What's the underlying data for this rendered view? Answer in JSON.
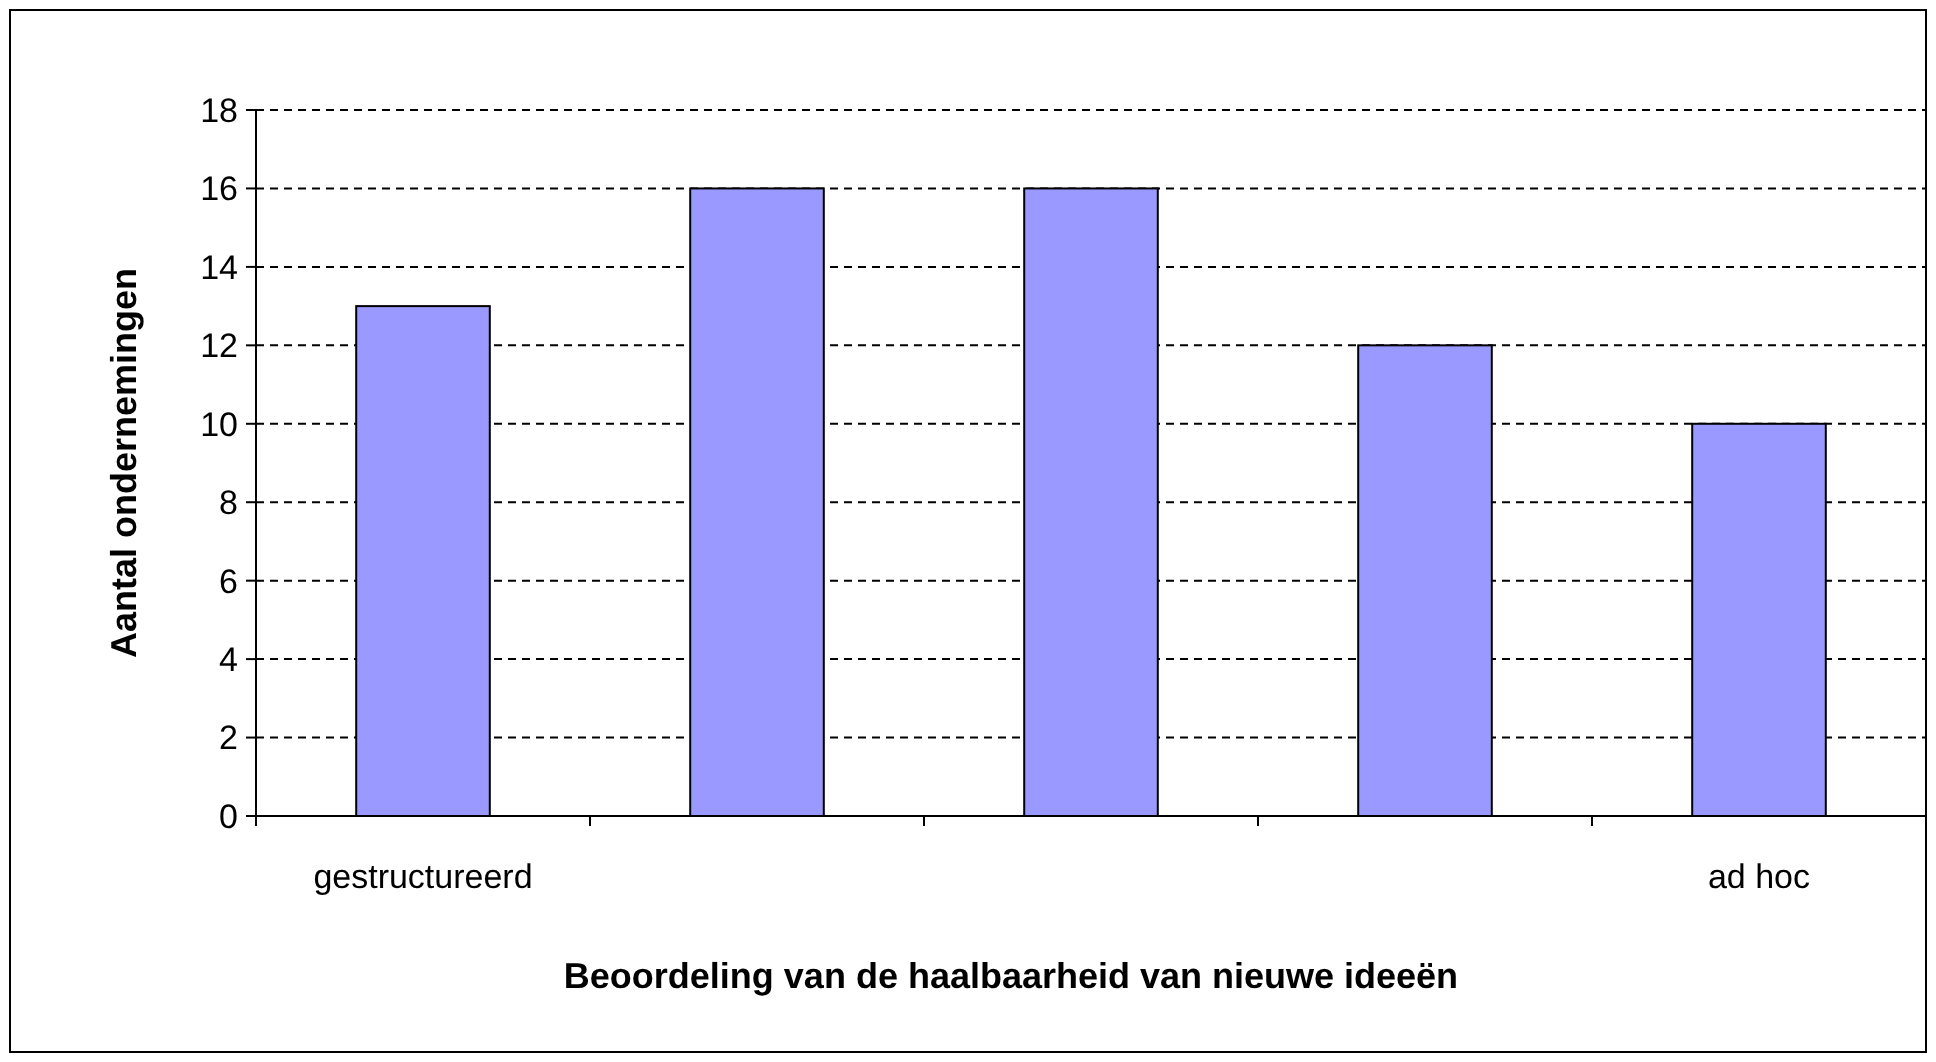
{
  "chart_data": {
    "type": "bar",
    "xlabel": "Beoordeling van de haalbaarheid van nieuwe ideeën",
    "ylabel": "Aantal ondernemingen",
    "categories": [
      "gestructureerd",
      null,
      null,
      null,
      "ad hoc"
    ],
    "values": [
      13,
      16,
      16,
      12,
      10
    ],
    "color": "#9999ff",
    "ylim": [
      0,
      18
    ],
    "yticks": [
      0,
      2,
      4,
      6,
      8,
      10,
      12,
      14,
      16,
      18
    ],
    "grid": "y"
  }
}
